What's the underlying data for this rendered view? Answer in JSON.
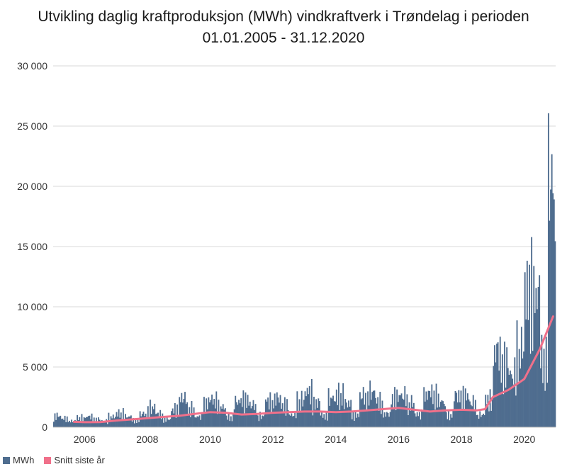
{
  "chart_data": {
    "type": "bar",
    "title_line1": "Utvikling daglig kraftproduksjon (MWh) vindkraftverk i Trøndelag i perioden",
    "title_line2": "01.01.2005 - 31.12.2020",
    "xlabel": "",
    "ylabel": "",
    "xlim": [
      "2005-01-01",
      "2020-12-31"
    ],
    "ylim": [
      0,
      30000
    ],
    "y_ticks": [
      "0",
      "5 000",
      "10 000",
      "15 000",
      "20 000",
      "25 000",
      "30 000"
    ],
    "x_ticks": [
      "2006",
      "2008",
      "2010",
      "2012",
      "2014",
      "2016",
      "2018",
      "2020"
    ],
    "grid": true,
    "legend_position": "bottom-left",
    "colors": {
      "mwh": "#4f6d8f",
      "avg": "#f0708a"
    },
    "series": [
      {
        "name": "MWh",
        "type": "bar",
        "note_dates_are_month_starts": true,
        "x": [
          "2005-01",
          "2005-04",
          "2005-07",
          "2005-10",
          "2006-01",
          "2006-04",
          "2006-07",
          "2006-10",
          "2007-01",
          "2007-04",
          "2007-07",
          "2007-10",
          "2008-01",
          "2008-04",
          "2008-07",
          "2008-10",
          "2009-01",
          "2009-04",
          "2009-07",
          "2009-10",
          "2010-01",
          "2010-04",
          "2010-07",
          "2010-10",
          "2011-01",
          "2011-04",
          "2011-07",
          "2011-10",
          "2012-01",
          "2012-04",
          "2012-07",
          "2012-10",
          "2013-01",
          "2013-04",
          "2013-07",
          "2013-10",
          "2014-01",
          "2014-04",
          "2014-07",
          "2014-10",
          "2015-01",
          "2015-04",
          "2015-07",
          "2015-10",
          "2016-01",
          "2016-04",
          "2016-07",
          "2016-10",
          "2017-01",
          "2017-04",
          "2017-07",
          "2017-10",
          "2018-01",
          "2018-04",
          "2018-07",
          "2018-10",
          "2019-01",
          "2019-04",
          "2019-07",
          "2019-10",
          "2020-01",
          "2020-04",
          "2020-07",
          "2020-10"
        ],
        "values": [
          1300,
          1000,
          700,
          1100,
          1200,
          900,
          700,
          1200,
          1600,
          1200,
          800,
          1500,
          2300,
          1500,
          900,
          2100,
          3300,
          2200,
          1200,
          2800,
          3100,
          2300,
          1200,
          2900,
          3200,
          2500,
          1300,
          3000,
          3300,
          2600,
          1400,
          3100,
          4100,
          2800,
          1400,
          3300,
          3800,
          2700,
          1400,
          3600,
          4000,
          3000,
          1500,
          3500,
          3600,
          2800,
          1500,
          3700,
          3800,
          2900,
          1500,
          3600,
          3600,
          2800,
          1400,
          3200,
          8600,
          7500,
          6000,
          9000,
          16000,
          15000,
          8000,
          27800
        ]
      },
      {
        "name": "Snitt siste år",
        "type": "line",
        "x": [
          "2005-09",
          "2006-01",
          "2006-07",
          "2007-01",
          "2007-07",
          "2008-01",
          "2008-07",
          "2009-01",
          "2009-07",
          "2010-01",
          "2010-07",
          "2011-01",
          "2011-07",
          "2012-01",
          "2012-07",
          "2013-01",
          "2013-07",
          "2014-01",
          "2014-07",
          "2015-01",
          "2015-07",
          "2016-01",
          "2016-07",
          "2017-01",
          "2017-07",
          "2018-01",
          "2018-07",
          "2018-10",
          "2019-01",
          "2019-07",
          "2020-01",
          "2020-07",
          "2020-12"
        ],
        "values": [
          450,
          420,
          430,
          550,
          650,
          750,
          850,
          950,
          1100,
          1250,
          1200,
          1050,
          1100,
          1200,
          1250,
          1300,
          1300,
          1250,
          1300,
          1400,
          1500,
          1600,
          1450,
          1300,
          1400,
          1450,
          1400,
          1500,
          2500,
          3100,
          4000,
          6500,
          9200
        ]
      }
    ]
  }
}
